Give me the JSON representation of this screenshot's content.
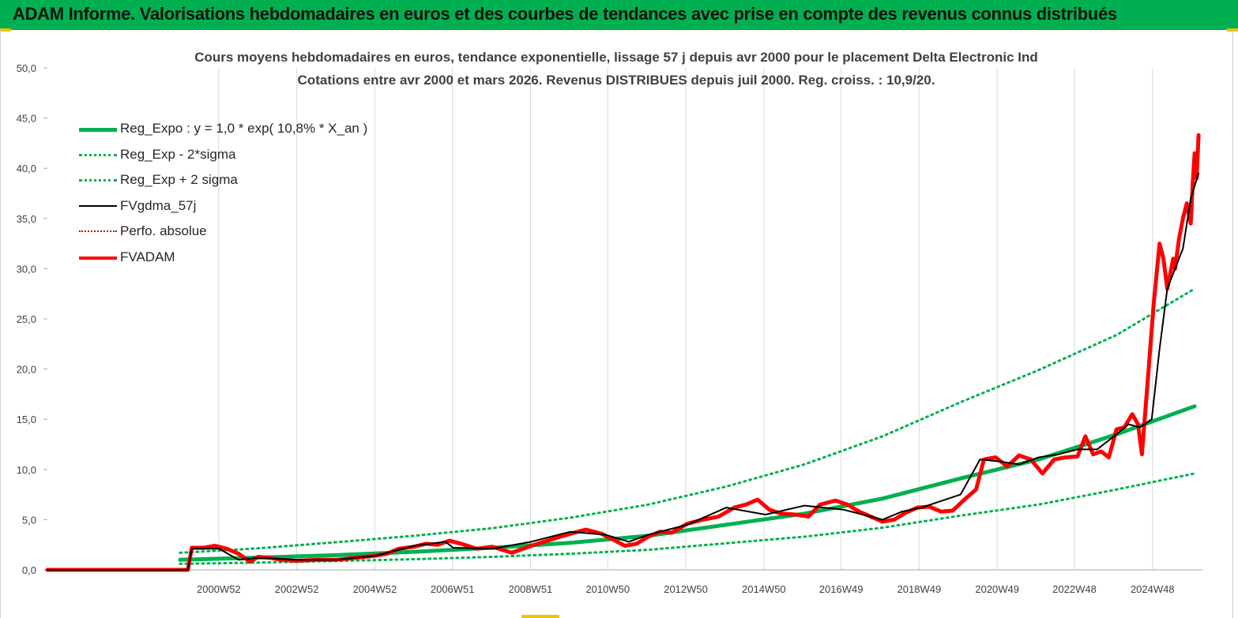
{
  "header": {
    "title": "ADAM Informe. Valorisations hebdomadaires en euros et des courbes de tendances avec prise en compte des revenus connus distribués"
  },
  "chart_data": {
    "type": "line",
    "title": "Cours moyens hebdomadaires en euros, tendance exponentielle, lissage 57 j depuis avr 2000 pour le placement Delta Electronic Ind",
    "subtitle": "Cotations entre avr 2000 et mars 2026. Revenus DISTRIBUES depuis juil 2000. Reg. croiss. : 10,9/20.",
    "xlabel": "",
    "ylabel": "",
    "x_range": [
      1996.6,
      2026.2
    ],
    "ylim": [
      0,
      50
    ],
    "y_ticks": [
      "0,0",
      "5,0",
      "10,0",
      "15,0",
      "20,0",
      "25,0",
      "30,0",
      "35,0",
      "40,0",
      "45,0",
      "50,0"
    ],
    "x_ticks": [
      {
        "label": "2000W52",
        "x": 2000.99
      },
      {
        "label": "2002W52",
        "x": 2002.99
      },
      {
        "label": "2004W52",
        "x": 2004.99
      },
      {
        "label": "2006W51",
        "x": 2006.98
      },
      {
        "label": "2008W51",
        "x": 2008.98
      },
      {
        "label": "2010W50",
        "x": 2010.96
      },
      {
        "label": "2012W50",
        "x": 2012.96
      },
      {
        "label": "2014W50",
        "x": 2014.96
      },
      {
        "label": "2016W49",
        "x": 2016.94
      },
      {
        "label": "2018W49",
        "x": 2018.94
      },
      {
        "label": "2020W49",
        "x": 2020.94
      },
      {
        "label": "2022W48",
        "x": 2022.92
      },
      {
        "label": "2024W48",
        "x": 2024.92
      }
    ],
    "grid": "vertical",
    "legend_position": "top-left",
    "series": [
      {
        "name": "Reg_Expo : y = 1,0 * exp( 10,8% *  X_an )",
        "color": "#00b050",
        "style": "solid-thick",
        "x": [
          2000.0,
          2002.0,
          2004.0,
          2006.0,
          2008.0,
          2010.0,
          2012.0,
          2014.0,
          2016.0,
          2018.0,
          2020.0,
          2022.0,
          2024.0,
          2026.0
        ],
        "values": [
          1.0,
          1.22,
          1.46,
          1.8,
          2.2,
          2.7,
          3.4,
          4.5,
          5.6,
          7.1,
          9.1,
          11.0,
          13.5,
          16.3
        ]
      },
      {
        "name": "Reg_Exp - 2*sigma",
        "color": "#00b050",
        "style": "dotted",
        "x": [
          2000.0,
          2002.0,
          2004.0,
          2006.0,
          2008.0,
          2010.0,
          2012.0,
          2014.0,
          2016.0,
          2018.0,
          2020.0,
          2022.0,
          2024.0,
          2026.0
        ],
        "values": [
          0.6,
          0.72,
          0.88,
          1.06,
          1.3,
          1.6,
          2.0,
          2.65,
          3.3,
          4.2,
          5.4,
          6.5,
          8.0,
          9.6
        ]
      },
      {
        "name": "Reg_Exp + 2 sigma",
        "color": "#00b050",
        "style": "dotted",
        "x": [
          2000.0,
          2002.0,
          2004.0,
          2006.0,
          2008.0,
          2010.0,
          2012.0,
          2014.0,
          2016.0,
          2018.0,
          2020.0,
          2022.0,
          2024.0,
          2026.0
        ],
        "values": [
          1.7,
          2.15,
          2.75,
          3.4,
          4.15,
          5.2,
          6.5,
          8.3,
          10.5,
          13.3,
          16.7,
          19.9,
          23.4,
          28.0
        ]
      },
      {
        "name": "FVgdma_57j",
        "color": "#000000",
        "style": "solid",
        "x": [
          1996.6,
          2000.2,
          2000.3,
          2001.0,
          2001.5,
          2002.0,
          2003.0,
          2004.0,
          2005.0,
          2006.0,
          2006.8,
          2007.0,
          2008.0,
          2009.0,
          2010.0,
          2010.9,
          2011.5,
          2012.0,
          2013.0,
          2014.0,
          2015.0,
          2016.0,
          2017.0,
          2018.0,
          2018.5,
          2019.0,
          2020.0,
          2020.5,
          2021.0,
          2021.5,
          2022.0,
          2022.5,
          2023.0,
          2023.5,
          2024.0,
          2024.3,
          2024.6,
          2024.9,
          2025.1,
          2025.3,
          2025.5,
          2025.7,
          2025.9,
          2026.1
        ],
        "values": [
          0,
          0,
          2.1,
          2.1,
          1.0,
          1.2,
          1.0,
          1.0,
          1.4,
          2.4,
          2.8,
          2.2,
          2.1,
          2.8,
          3.8,
          3.5,
          2.8,
          3.5,
          4.5,
          6.2,
          5.5,
          6.4,
          6.0,
          5.0,
          5.8,
          6.2,
          7.5,
          11.0,
          10.8,
          10.5,
          11.2,
          11.5,
          12.0,
          12.0,
          13.5,
          14.5,
          14.2,
          15.0,
          22.0,
          28.0,
          30.0,
          32.0,
          37.0,
          39.5
        ]
      },
      {
        "name": "Perfo. absolue",
        "color": "#c00000",
        "style": "dotted",
        "x": [],
        "values": []
      },
      {
        "name": "FVADAM",
        "color": "#ff0000",
        "style": "solid-thick",
        "x": [
          1996.6,
          2000.2,
          2000.3,
          2000.6,
          2000.9,
          2001.2,
          2001.5,
          2001.8,
          2002.0,
          2002.3,
          2002.6,
          2003.0,
          2003.5,
          2004.0,
          2004.5,
          2005.0,
          2005.3,
          2005.6,
          2006.0,
          2006.3,
          2006.6,
          2006.9,
          2007.2,
          2007.6,
          2008.0,
          2008.5,
          2009.0,
          2009.5,
          2010.0,
          2010.4,
          2010.8,
          2011.1,
          2011.4,
          2011.7,
          2012.0,
          2012.3,
          2012.6,
          2013.0,
          2013.4,
          2013.8,
          2014.2,
          2014.5,
          2014.8,
          2015.1,
          2015.4,
          2015.8,
          2016.1,
          2016.4,
          2016.8,
          2017.1,
          2017.4,
          2017.7,
          2018.0,
          2018.3,
          2018.6,
          2018.9,
          2019.2,
          2019.5,
          2019.8,
          2020.1,
          2020.4,
          2020.6,
          2020.9,
          2021.2,
          2021.5,
          2021.8,
          2022.1,
          2022.4,
          2022.7,
          2023.0,
          2023.2,
          2023.4,
          2023.6,
          2023.8,
          2024.0,
          2024.2,
          2024.4,
          2024.55,
          2024.65,
          2024.8,
          2024.95,
          2025.1,
          2025.2,
          2025.3,
          2025.45,
          2025.5,
          2025.6,
          2025.7,
          2025.8,
          2025.9,
          2025.95,
          2026.0,
          2026.05,
          2026.1
        ],
        "values": [
          0,
          0,
          2.2,
          2.2,
          2.4,
          2.1,
          1.6,
          0.8,
          1.3,
          1.2,
          1.0,
          0.9,
          1.0,
          1.0,
          1.2,
          1.4,
          1.6,
          2.1,
          2.3,
          2.6,
          2.5,
          2.9,
          2.6,
          2.1,
          2.3,
          1.7,
          2.4,
          3.0,
          3.6,
          4.0,
          3.6,
          3.0,
          2.4,
          2.6,
          3.3,
          3.8,
          3.7,
          4.6,
          5.0,
          5.3,
          6.2,
          6.5,
          7.0,
          6.0,
          5.6,
          5.5,
          5.3,
          6.5,
          6.9,
          6.5,
          5.8,
          5.3,
          4.8,
          5.0,
          5.7,
          6.2,
          6.3,
          5.8,
          5.9,
          7.0,
          8.0,
          11.0,
          11.2,
          10.3,
          11.4,
          11.0,
          9.6,
          11.0,
          11.2,
          11.3,
          13.3,
          11.5,
          11.8,
          11.2,
          14.0,
          14.2,
          15.5,
          14.5,
          11.5,
          19.0,
          26.5,
          32.5,
          31.0,
          28.0,
          31.0,
          30.0,
          33.0,
          35.0,
          36.5,
          34.5,
          38.5,
          41.5,
          39.0,
          43.3
        ]
      }
    ]
  }
}
